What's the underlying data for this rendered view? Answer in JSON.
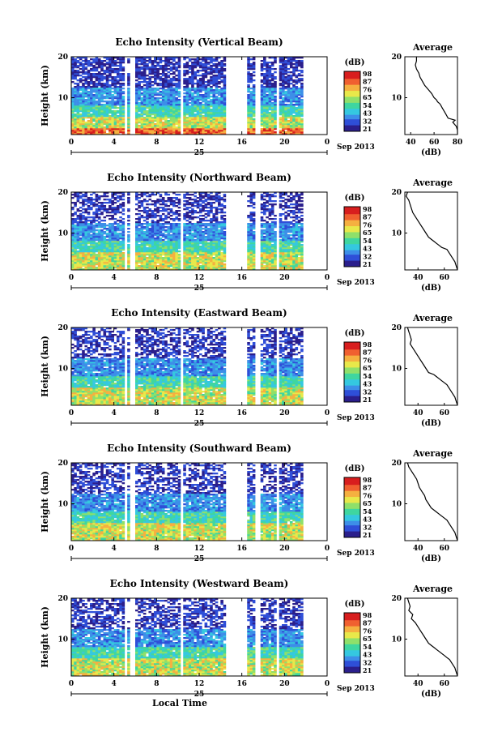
{
  "colors": {
    "colorbar": [
      "#2b1f8c",
      "#2f4fd8",
      "#3d8fe8",
      "#35c8e0",
      "#3fd6a0",
      "#8fe06a",
      "#e8e84a",
      "#f5b040",
      "#f06030",
      "#d81e1e"
    ],
    "line": "#000000"
  },
  "chart_data": [
    {
      "type": "heatmap",
      "title": "Echo Intensity (Vertical Beam)",
      "ylabel": "Height (km)",
      "xlabel": "",
      "date_label": "25",
      "month_label": "Sep 2013",
      "x_ticks": [
        "0",
        "4",
        "8",
        "12",
        "16",
        "20",
        "0"
      ],
      "x_range": [
        0,
        24
      ],
      "y_ticks": [
        "20",
        "10"
      ],
      "y_range": [
        1,
        20
      ],
      "gaps": [
        [
          5.1,
          5.3
        ],
        [
          5.6,
          5.9
        ],
        [
          10.3,
          10.5
        ],
        [
          14.5,
          16.5
        ],
        [
          17.2,
          17.7
        ],
        [
          19.3,
          19.6
        ],
        [
          21.8,
          24
        ]
      ],
      "colorbar": {
        "unit": "(dB)",
        "ticks": [
          "98",
          "87",
          "76",
          "65",
          "54",
          "43",
          "32",
          "21"
        ]
      },
      "profile": {
        "title": "Average",
        "xlabel": "(dB)",
        "x_ticks": [
          "40",
          "60",
          "80"
        ],
        "x_range": [
          35,
          80
        ],
        "y_ticks": [
          "20",
          "10"
        ],
        "y_range": [
          1,
          20
        ],
        "x": [
          45,
          45,
          44,
          45,
          47,
          48,
          50,
          52,
          55,
          58,
          60,
          62,
          63,
          65,
          66,
          67,
          68,
          70,
          72,
          78,
          76,
          79,
          80,
          80
        ],
        "y": [
          20,
          19,
          18,
          17,
          16,
          15,
          14,
          13,
          12,
          11,
          10,
          9.5,
          9,
          8.5,
          8,
          7.5,
          7,
          6,
          5,
          4.5,
          4,
          3,
          2,
          1
        ]
      }
    },
    {
      "type": "heatmap",
      "title": "Echo Intensity (Northward Beam)",
      "ylabel": "Height (km)",
      "xlabel": "",
      "date_label": "25",
      "month_label": "Sep 2013",
      "x_ticks": [
        "0",
        "4",
        "8",
        "12",
        "16",
        "20",
        "0"
      ],
      "x_range": [
        0,
        24
      ],
      "y_ticks": [
        "20",
        "10"
      ],
      "y_range": [
        1,
        20
      ],
      "gaps": [
        [
          5.1,
          5.3
        ],
        [
          5.6,
          5.9
        ],
        [
          10.3,
          10.5
        ],
        [
          14.5,
          16.5
        ],
        [
          17.2,
          17.7
        ],
        [
          19.3,
          19.6
        ],
        [
          21.8,
          24
        ]
      ],
      "colorbar": {
        "unit": "(dB)",
        "ticks": [
          "98",
          "87",
          "76",
          "65",
          "54",
          "43",
          "32",
          "21"
        ]
      },
      "profile": {
        "title": "Average",
        "xlabel": "(dB)",
        "x_ticks": [
          "40",
          "60"
        ],
        "x_range": [
          30,
          70
        ],
        "y_ticks": [
          "20",
          "10"
        ],
        "y_range": [
          1,
          20
        ],
        "x": [
          32,
          31,
          33,
          34,
          35,
          36,
          38,
          40,
          42,
          44,
          46,
          48,
          50,
          52,
          54,
          56,
          58,
          62,
          64,
          66,
          68,
          70
        ],
        "y": [
          20,
          19,
          18,
          17,
          16,
          15,
          14,
          13,
          12,
          11,
          10,
          9,
          8.5,
          8,
          7.5,
          7,
          6.5,
          6,
          5,
          4,
          3,
          1
        ]
      }
    },
    {
      "type": "heatmap",
      "title": "Echo Intensity (Eastward Beam)",
      "ylabel": "Height (km)",
      "xlabel": "",
      "date_label": "25",
      "month_label": "Sep 2013",
      "x_ticks": [
        "0",
        "4",
        "8",
        "12",
        "16",
        "20",
        "0"
      ],
      "x_range": [
        0,
        24
      ],
      "y_ticks": [
        "20",
        "10"
      ],
      "y_range": [
        1,
        20
      ],
      "gaps": [
        [
          5.1,
          5.3
        ],
        [
          5.6,
          5.9
        ],
        [
          10.3,
          10.5
        ],
        [
          14.5,
          16.5
        ],
        [
          17.2,
          17.7
        ],
        [
          19.3,
          19.6
        ],
        [
          21.8,
          24
        ]
      ],
      "colorbar": {
        "unit": "(dB)",
        "ticks": [
          "98",
          "87",
          "76",
          "65",
          "54",
          "43",
          "32",
          "21"
        ]
      },
      "profile": {
        "title": "Average",
        "xlabel": "(dB)",
        "x_ticks": [
          "40",
          "60"
        ],
        "x_range": [
          30,
          70
        ],
        "y_ticks": [
          "20",
          "10"
        ],
        "y_range": [
          1,
          20
        ],
        "x": [
          32,
          33,
          34,
          35,
          34,
          36,
          38,
          40,
          42,
          44,
          46,
          48,
          52,
          54,
          56,
          58,
          60,
          62,
          64,
          66,
          68,
          70
        ],
        "y": [
          20,
          19,
          18,
          17,
          16,
          15,
          14,
          13,
          12,
          11,
          10,
          9,
          8.5,
          8,
          7.5,
          7,
          6.5,
          6,
          5,
          4,
          3,
          1
        ]
      }
    },
    {
      "type": "heatmap",
      "title": "Echo Intensity (Southward Beam)",
      "ylabel": "Height (km)",
      "xlabel": "",
      "date_label": "25",
      "month_label": "Sep 2013",
      "x_ticks": [
        "0",
        "4",
        "8",
        "12",
        "16",
        "20",
        "0"
      ],
      "x_range": [
        0,
        24
      ],
      "y_ticks": [
        "20",
        "10"
      ],
      "y_range": [
        1,
        20
      ],
      "gaps": [
        [
          5.1,
          5.3
        ],
        [
          5.6,
          5.9
        ],
        [
          10.3,
          10.5
        ],
        [
          14.5,
          16.5
        ],
        [
          17.2,
          17.7
        ],
        [
          19.3,
          19.6
        ],
        [
          21.8,
          24
        ]
      ],
      "colorbar": {
        "unit": "(dB)",
        "ticks": [
          "98",
          "87",
          "76",
          "65",
          "54",
          "43",
          "32",
          "21"
        ]
      },
      "profile": {
        "title": "Average",
        "xlabel": "(dB)",
        "x_ticks": [
          "40",
          "60"
        ],
        "x_range": [
          30,
          70
        ],
        "y_ticks": [
          "20",
          "10"
        ],
        "y_range": [
          1,
          20
        ],
        "x": [
          32,
          33,
          35,
          37,
          39,
          40,
          41,
          43,
          45,
          46,
          48,
          50,
          52,
          54,
          56,
          58,
          60,
          62,
          64,
          66,
          68,
          70
        ],
        "y": [
          20,
          19,
          18,
          17,
          16,
          15,
          14,
          13,
          12,
          11,
          10,
          9,
          8.5,
          8,
          7.5,
          7,
          6.5,
          6,
          5,
          4,
          3,
          1
        ]
      }
    },
    {
      "type": "heatmap",
      "title": "Echo Intensity (Westward Beam)",
      "ylabel": "Height (km)",
      "xlabel": "Local Time",
      "date_label": "25",
      "month_label": "Sep 2013",
      "x_ticks": [
        "0",
        "4",
        "8",
        "12",
        "16",
        "20",
        "0"
      ],
      "x_range": [
        0,
        24
      ],
      "y_ticks": [
        "20",
        "10"
      ],
      "y_range": [
        1,
        20
      ],
      "gaps": [
        [
          5.1,
          5.3
        ],
        [
          5.6,
          5.9
        ],
        [
          10.3,
          10.5
        ],
        [
          14.5,
          16.5
        ],
        [
          17.2,
          17.7
        ],
        [
          19.3,
          19.6
        ],
        [
          21.8,
          24
        ]
      ],
      "colorbar": {
        "unit": "(dB)",
        "ticks": [
          "98",
          "87",
          "76",
          "65",
          "54",
          "43",
          "32",
          "21"
        ]
      },
      "profile": {
        "title": "Average",
        "xlabel": "(dB)",
        "x_ticks": [
          "40",
          "60"
        ],
        "x_range": [
          30,
          70
        ],
        "y_ticks": [
          "20",
          "10"
        ],
        "y_range": [
          1,
          20
        ],
        "x": [
          32,
          33,
          34,
          33,
          36,
          35,
          38,
          40,
          42,
          44,
          46,
          48,
          50,
          52,
          54,
          56,
          58,
          60,
          62,
          64,
          66,
          68,
          70
        ],
        "y": [
          20,
          19,
          18,
          17,
          16,
          15,
          14,
          13,
          12,
          11,
          10,
          9,
          8.5,
          8,
          7.5,
          7,
          6.5,
          6,
          5.5,
          5,
          4,
          3,
          1
        ]
      }
    }
  ]
}
